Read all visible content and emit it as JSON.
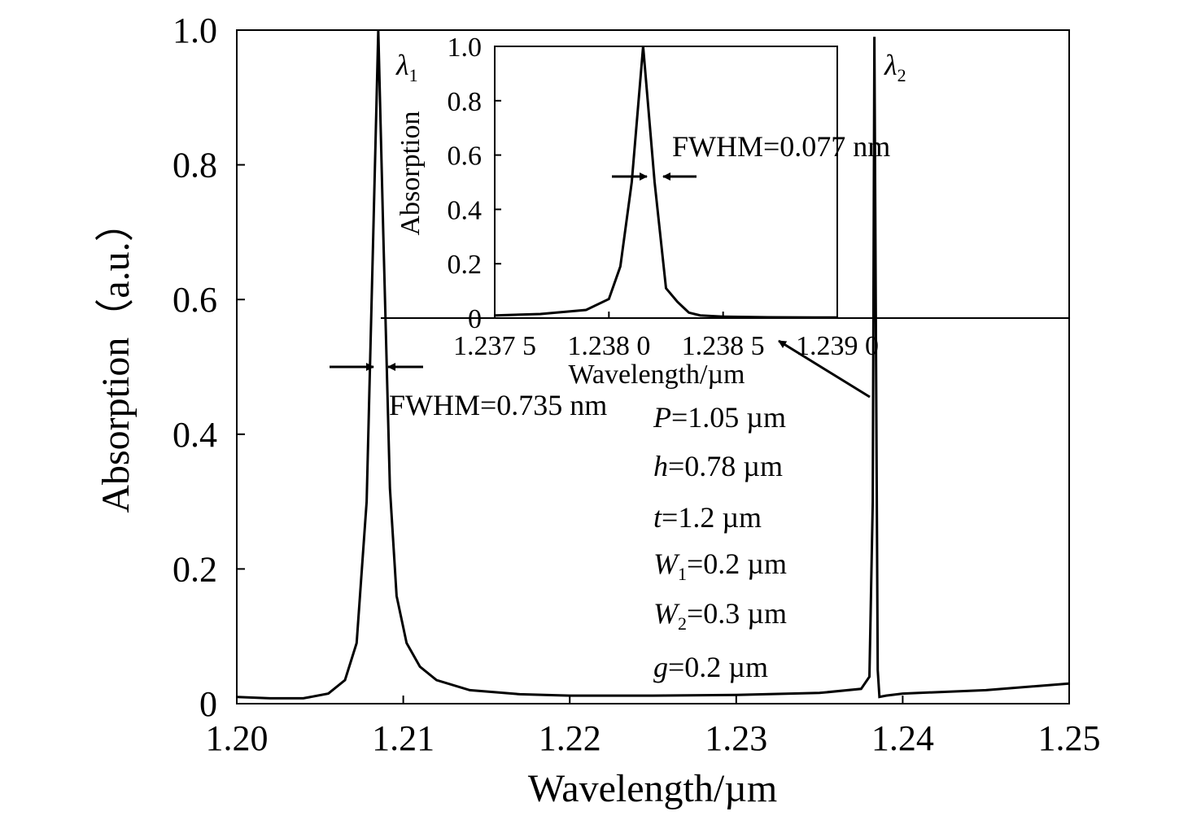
{
  "chart_data": [
    {
      "type": "line",
      "xlabel": "Wavelength/µm",
      "ylabel": "Absorption（a.u.）",
      "xlim": [
        1.2,
        1.25
      ],
      "ylim": [
        0,
        1.0
      ],
      "x_ticks": [
        "1.20",
        "1.21",
        "1.22",
        "1.23",
        "1.24",
        "1.25"
      ],
      "y_ticks": [
        "0",
        "0.2",
        "0.4",
        "0.6",
        "0.8",
        "1.0"
      ],
      "series": [
        {
          "x": [
            1.2,
            1.202,
            1.204,
            1.2055,
            1.2065,
            1.2072,
            1.2078,
            1.2082,
            1.2085,
            1.2088,
            1.2092,
            1.2096,
            1.2102,
            1.211,
            1.212,
            1.214,
            1.217,
            1.22,
            1.225,
            1.23,
            1.235,
            1.2375,
            1.238,
            1.2382,
            1.2383,
            1.2384,
            1.2385,
            1.2386,
            1.239,
            1.24,
            1.245,
            1.25
          ],
          "y": [
            0.01,
            0.008,
            0.008,
            0.015,
            0.035,
            0.09,
            0.3,
            0.7,
            1.0,
            0.7,
            0.32,
            0.16,
            0.09,
            0.055,
            0.035,
            0.02,
            0.014,
            0.012,
            0.012,
            0.013,
            0.016,
            0.022,
            0.04,
            0.3,
            0.99,
            0.5,
            0.05,
            0.01,
            0.012,
            0.015,
            0.02,
            0.03
          ]
        }
      ],
      "annotations": {
        "peak1_label": "λ",
        "peak1_sub": "1",
        "peak2_label": "λ",
        "peak2_sub": "2",
        "fwhm_main": "FWHM=0.735 nm",
        "params": [
          {
            "var": "P",
            "sub": "",
            "value": "=1.05 µm"
          },
          {
            "var": "h",
            "sub": "",
            "value": "=0.78 µm"
          },
          {
            "var": "t",
            "sub": "",
            "value": "=1.2 µm"
          },
          {
            "var": "W",
            "sub": "1",
            "value": "=0.2 µm"
          },
          {
            "var": "W",
            "sub": "2",
            "value": "=0.3 µm"
          },
          {
            "var": "g",
            "sub": "",
            "value": "=0.2 µm"
          }
        ]
      }
    },
    {
      "type": "line",
      "inset": true,
      "xlabel": "Wavelength/µm",
      "ylabel": "Absorption",
      "xlim": [
        1.2375,
        1.239
      ],
      "ylim": [
        0,
        1.0
      ],
      "x_ticks": [
        "1.237 5",
        "1.238 0",
        "1.238 5",
        "1.239 0"
      ],
      "y_ticks": [
        "0",
        "0.2",
        "0.4",
        "0.6",
        "0.8",
        "1.0"
      ],
      "series": [
        {
          "x": [
            1.2375,
            1.2377,
            1.2379,
            1.238,
            1.23805,
            1.2381,
            1.23815,
            1.2382,
            1.23825,
            1.2383,
            1.23835,
            1.2384,
            1.2385,
            1.2387,
            1.2389,
            1.239
          ],
          "y": [
            0.01,
            0.015,
            0.03,
            0.07,
            0.19,
            0.5,
            1.0,
            0.5,
            0.11,
            0.06,
            0.02,
            0.01,
            0.005,
            0.003,
            0.002,
            0.002
          ]
        }
      ],
      "annotations": {
        "fwhm_inset": "FWHM=0.077 nm"
      }
    }
  ]
}
